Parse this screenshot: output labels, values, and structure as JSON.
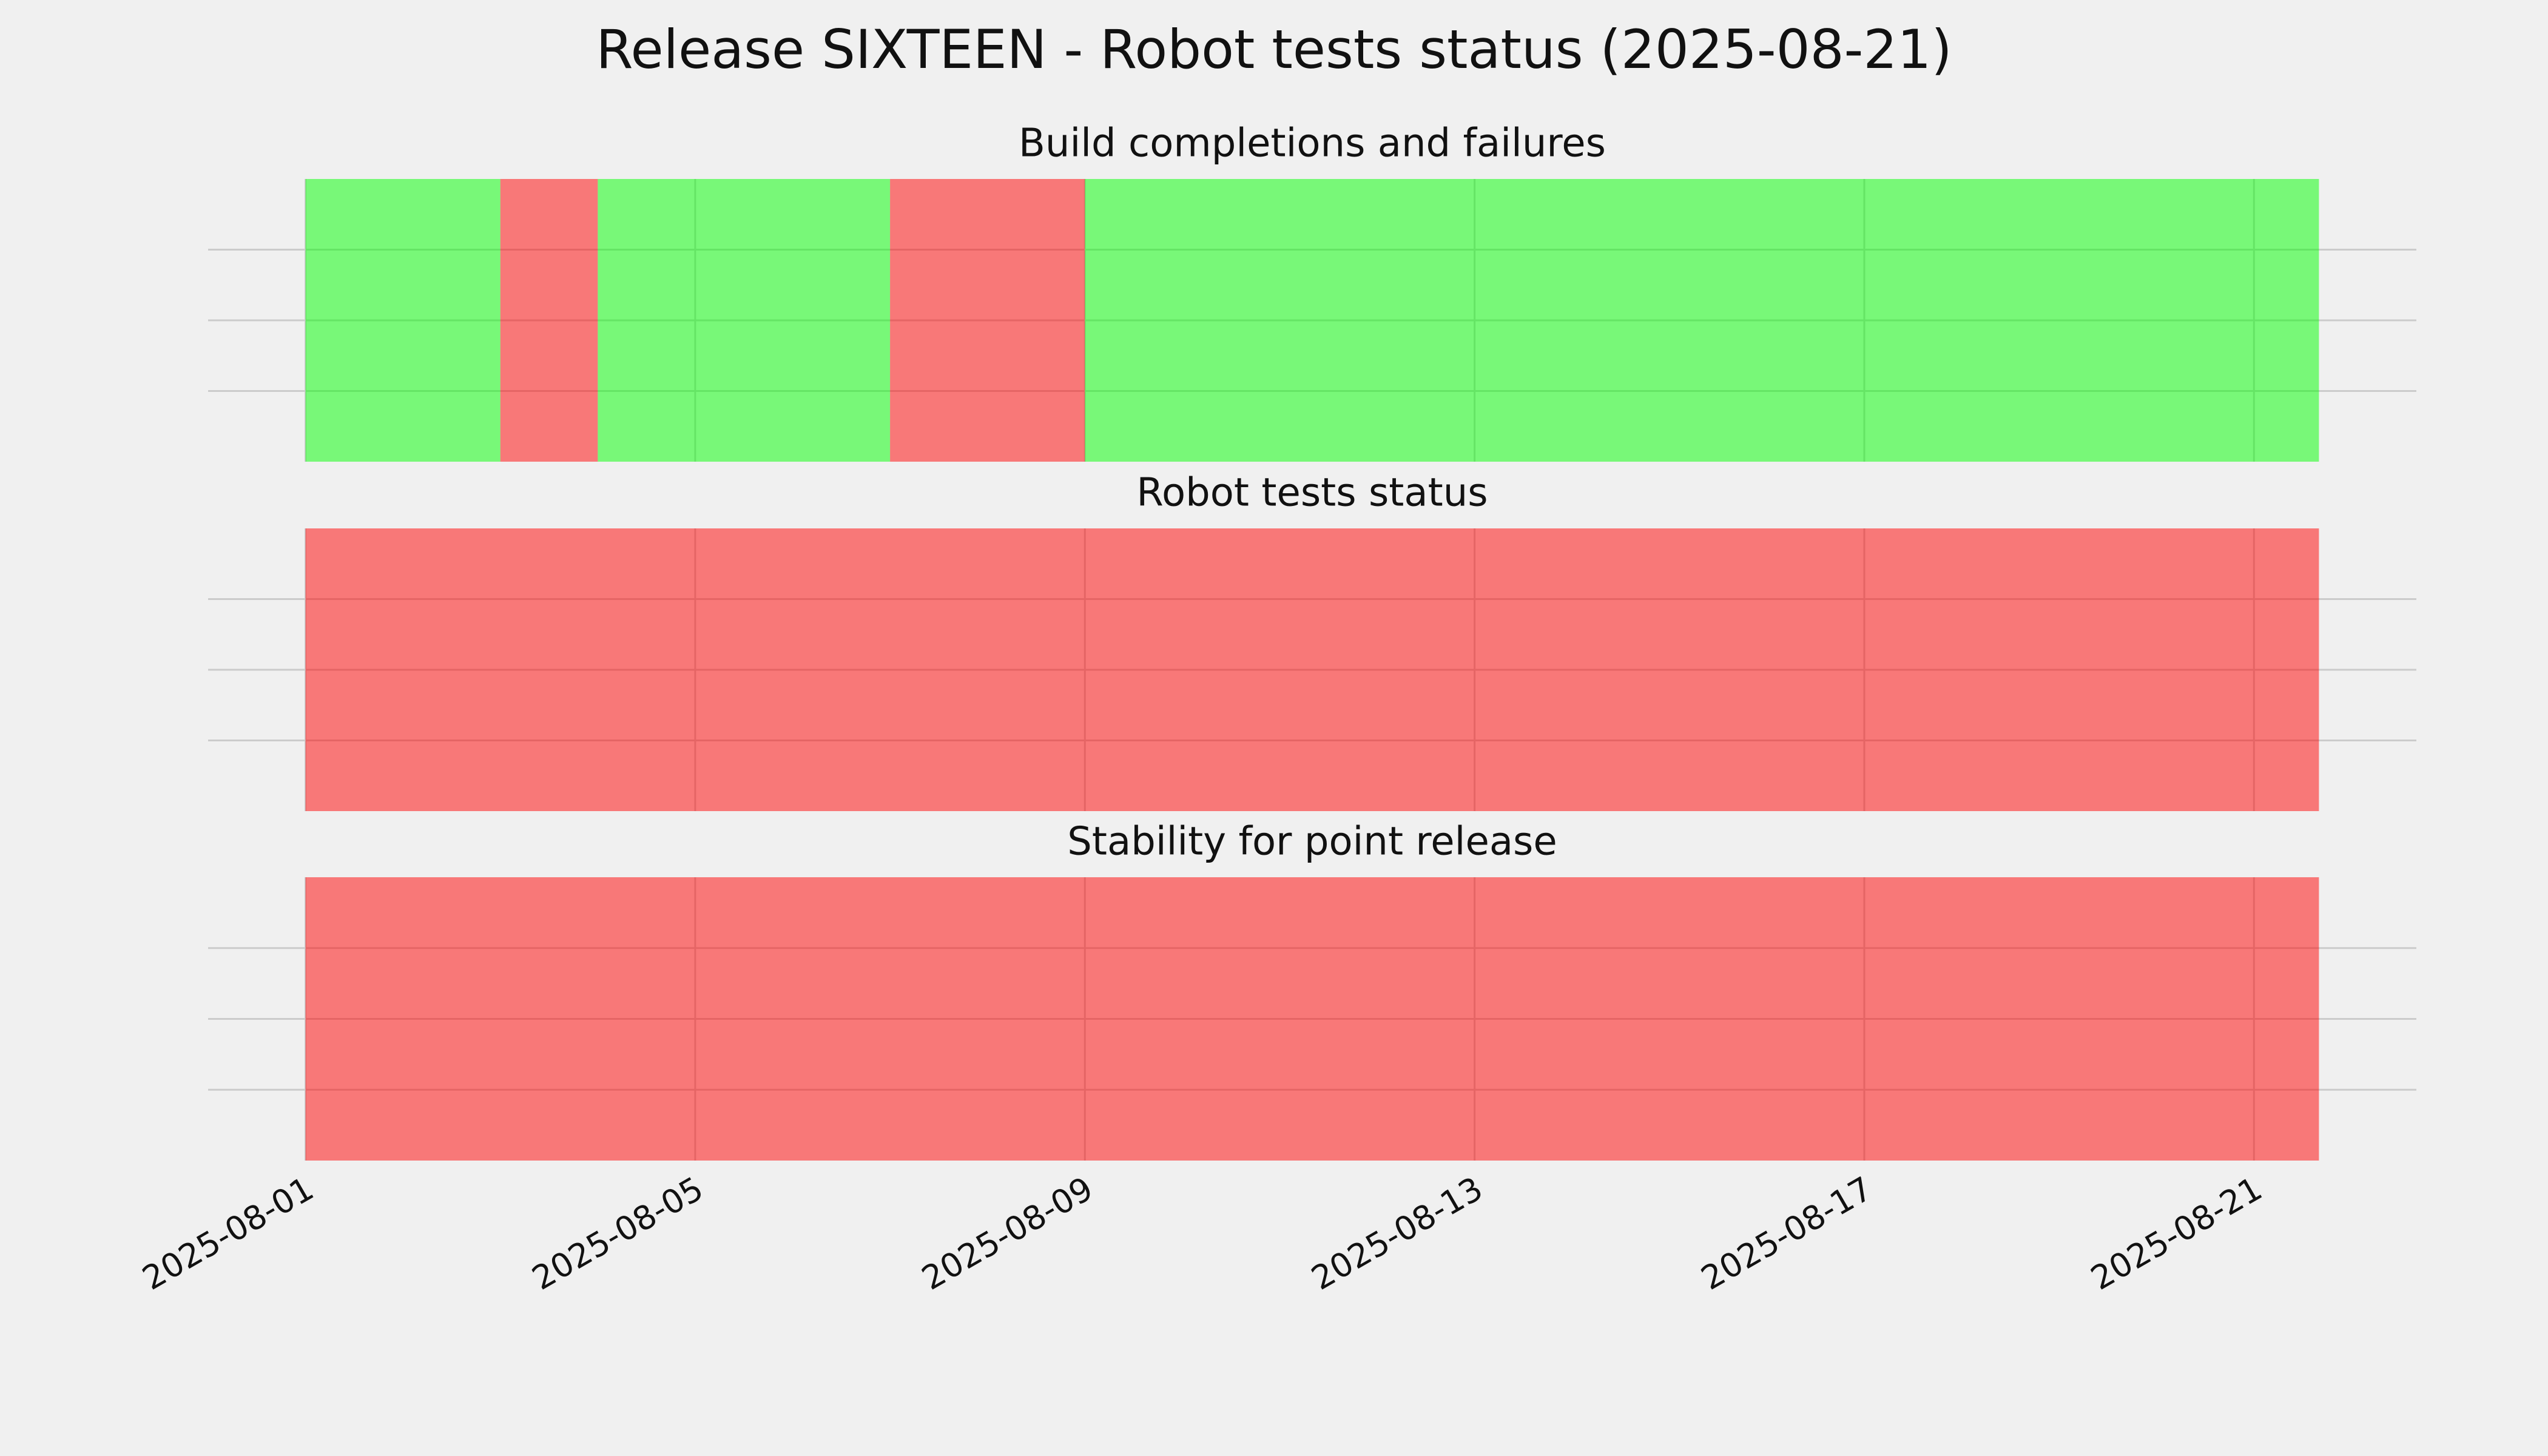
{
  "title": "Release SIXTEEN - Robot tests status (2025-08-21)",
  "xlim": [
    "2025-07-31T00:00",
    "2025-08-22T16:00"
  ],
  "xticks": [
    "2025-08-01",
    "2025-08-05",
    "2025-08-09",
    "2025-08-13",
    "2025-08-17",
    "2025-08-21"
  ],
  "chart_data": [
    {
      "type": "timeline",
      "title": "Build completions and failures",
      "ylim": [
        0,
        1
      ],
      "yticks": [
        0.25,
        0.5,
        0.75
      ],
      "show_ytick_labels": false,
      "grid": true,
      "alpha": 0.5,
      "segments": [
        {
          "start": "2025-08-01",
          "end": "2025-08-03",
          "color": "#00ff00"
        },
        {
          "start": "2025-08-03",
          "end": "2025-08-04",
          "color": "#ff0000"
        },
        {
          "start": "2025-08-04",
          "end": "2025-08-07",
          "color": "#00ff00"
        },
        {
          "start": "2025-08-07",
          "end": "2025-08-09",
          "color": "#ff0000"
        },
        {
          "start": "2025-08-09",
          "end": "2025-08-21T16:00",
          "color": "#00ff00"
        }
      ]
    },
    {
      "type": "timeline",
      "title": "Robot tests status",
      "ylim": [
        0,
        1
      ],
      "yticks": [
        0.25,
        0.5,
        0.75
      ],
      "show_ytick_labels": false,
      "grid": true,
      "alpha": 0.5,
      "segments": [
        {
          "start": "2025-08-01",
          "end": "2025-08-21T16:00",
          "color": "#ff0000"
        }
      ]
    },
    {
      "type": "timeline",
      "title": "Stability for point release",
      "ylim": [
        0,
        1
      ],
      "yticks": [
        0.25,
        0.5,
        0.75
      ],
      "show_ytick_labels": false,
      "grid": true,
      "alpha": 0.5,
      "segments": [
        {
          "start": "2025-08-01",
          "end": "2025-08-21T16:00",
          "color": "#ff0000"
        }
      ]
    }
  ]
}
